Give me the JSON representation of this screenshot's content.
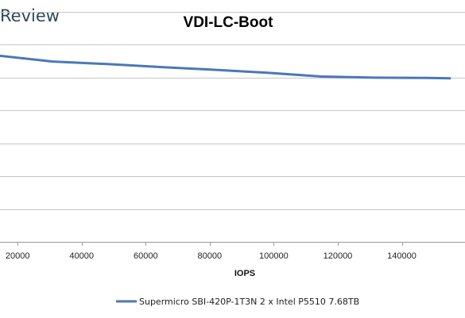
{
  "brand": {
    "text": "Review"
  },
  "chart_data": {
    "type": "line",
    "title": "VDI-LC-Boot",
    "xlabel": "IOPS",
    "ylabel": "",
    "x_ticks": [
      20000,
      40000,
      60000,
      80000,
      100000,
      120000,
      140000
    ],
    "xlim": [
      14500,
      157000
    ],
    "ylim": [
      0,
      1
    ],
    "grid": true,
    "legend_position": "bottom",
    "series": [
      {
        "name": "Supermicro SBI-420P-1T3N 2 x Intel P5510 7.68TB",
        "color": "#4a78b8",
        "x": [
          14500,
          31000,
          48000,
          65000,
          82000,
          98000,
          115000,
          131000,
          148000,
          155000
        ],
        "y": [
          0.809,
          0.784,
          0.773,
          0.76,
          0.748,
          0.735,
          0.719,
          0.714,
          0.713,
          0.711
        ]
      }
    ]
  }
}
